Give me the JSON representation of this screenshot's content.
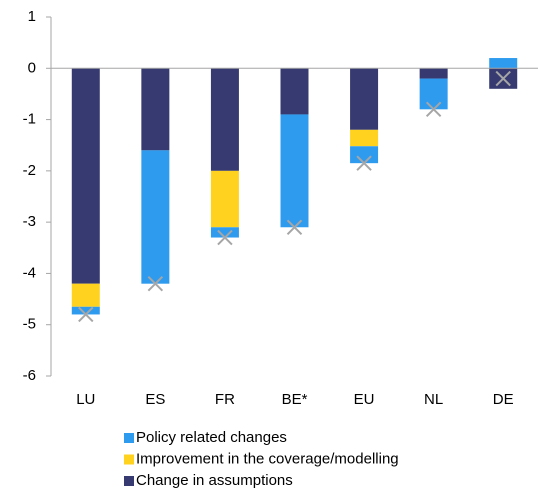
{
  "chart_data": {
    "type": "stacked-bar",
    "categories": [
      "LU",
      "ES",
      "FR",
      "BE*",
      "EU",
      "NL",
      "DE"
    ],
    "series": [
      {
        "name": "Policy related changes",
        "color": "#2f9bef",
        "values": [
          -0.15,
          -2.6,
          -0.2,
          -2.2,
          -0.33,
          -0.6,
          0.2
        ]
      },
      {
        "name": "Improvement in the coverage/modelling",
        "color": "#ffd21f",
        "values": [
          -0.45,
          0,
          -1.1,
          0,
          -0.32,
          0,
          0
        ]
      },
      {
        "name": "Change in assumptions",
        "color": "#363a70",
        "values": [
          -4.2,
          -1.6,
          -2.0,
          -0.9,
          -1.2,
          -0.2,
          -0.4
        ]
      }
    ],
    "markers": {
      "color": "#a6a6a6",
      "values": [
        -4.8,
        -4.2,
        -3.3,
        -3.1,
        -1.85,
        -0.8,
        -0.2
      ]
    },
    "ylim": [
      -6,
      1
    ],
    "yticks": [
      1,
      0,
      -1,
      -2,
      -3,
      -4,
      -5,
      -6
    ],
    "grid": false
  }
}
